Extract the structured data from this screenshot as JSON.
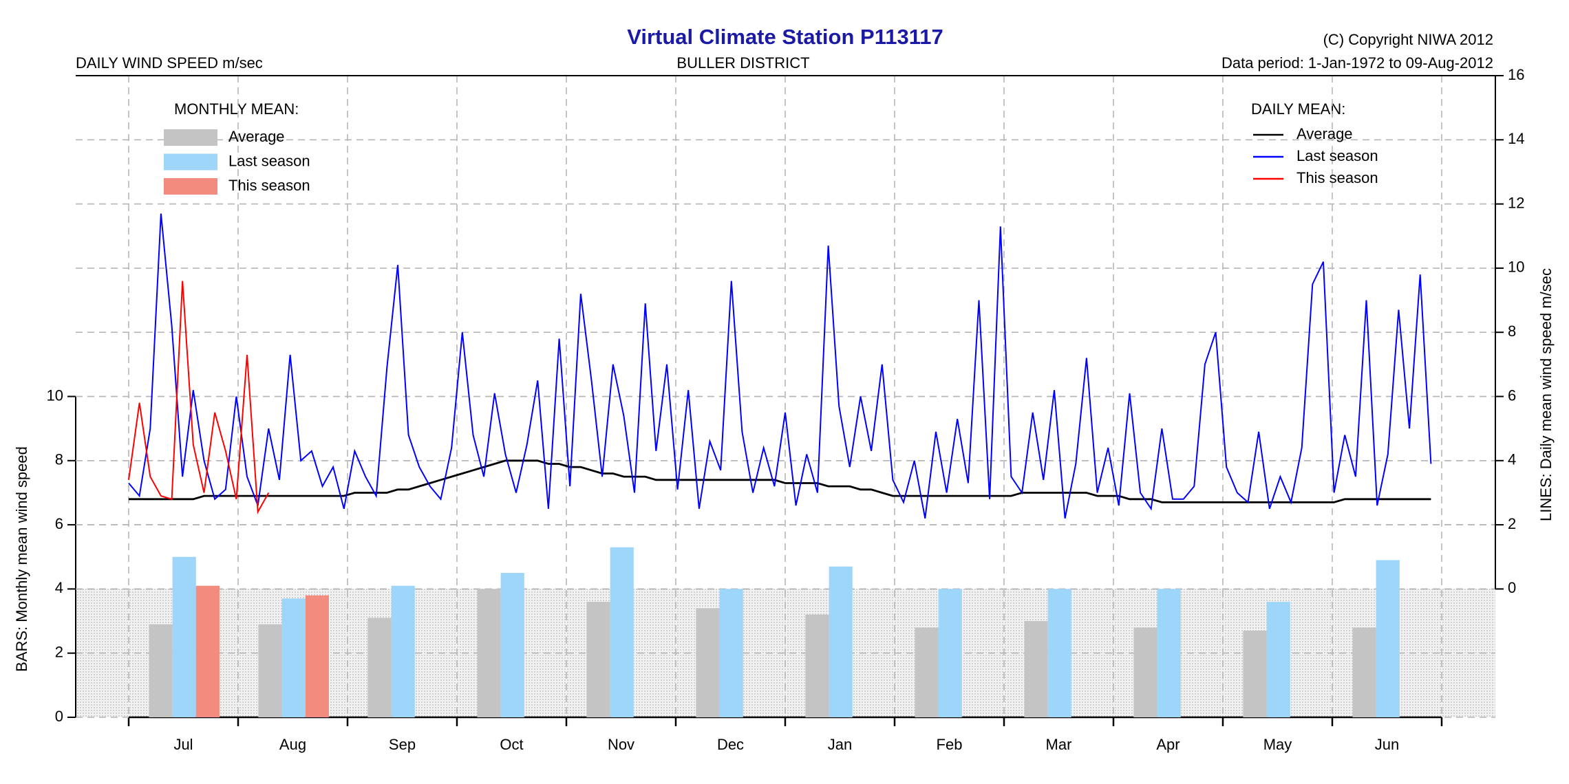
{
  "chart_data": [
    {
      "type": "bar",
      "title": "Virtual Climate Station P113117",
      "subtitle": "BULLER DISTRICT",
      "header_left": "DAILY WIND SPEED m/sec",
      "copyright": "(C) Copyright NIWA  2012",
      "data_period": "Data period:  1-Jan-1972  to  09-Aug-2012",
      "ylabel": "BARS: Monthly mean wind speed",
      "legend_title": "MONTHLY MEAN:",
      "categories": [
        "Jul",
        "Aug",
        "Sep",
        "Oct",
        "Nov",
        "Dec",
        "Jan",
        "Feb",
        "Mar",
        "Apr",
        "May",
        "Jun"
      ],
      "ylim": [
        0,
        20
      ],
      "yticks": [
        0,
        2,
        4,
        6,
        8,
        10
      ],
      "grid": true,
      "series": [
        {
          "name": "Average",
          "color": "#c4c4c4",
          "values": [
            2.9,
            2.9,
            3.1,
            4.0,
            3.6,
            3.4,
            3.2,
            2.8,
            3.0,
            2.8,
            2.7,
            2.8
          ]
        },
        {
          "name": "Last season",
          "color": "#9ed6fa",
          "values": [
            5.0,
            3.7,
            4.1,
            4.5,
            5.3,
            4.0,
            4.7,
            4.0,
            4.0,
            4.0,
            3.6,
            4.9
          ]
        },
        {
          "name": "This season",
          "color": "#f28c7f",
          "values": [
            4.1,
            3.8,
            null,
            null,
            null,
            null,
            null,
            null,
            null,
            null,
            null,
            null
          ]
        }
      ]
    },
    {
      "type": "line",
      "ylabel": "LINES: Daily mean wind speed m/sec",
      "legend_title": "DAILY MEAN:",
      "ylim": [
        -4,
        16
      ],
      "yticks": [
        0,
        2,
        4,
        6,
        8,
        10,
        12,
        14,
        16
      ],
      "grid": true,
      "series": [
        {
          "name": "Average",
          "color": "#000000",
          "values": [
            2.8,
            2.8,
            2.8,
            2.8,
            2.8,
            2.8,
            2.8,
            2.9,
            2.9,
            2.9,
            2.9,
            2.9,
            2.9,
            2.9,
            2.9,
            2.9,
            2.9,
            2.9,
            2.9,
            2.9,
            2.9,
            3.0,
            3.0,
            3.0,
            3.0,
            3.1,
            3.1,
            3.2,
            3.3,
            3.4,
            3.5,
            3.6,
            3.7,
            3.8,
            3.9,
            4.0,
            4.0,
            4.0,
            4.0,
            3.9,
            3.9,
            3.8,
            3.8,
            3.7,
            3.6,
            3.6,
            3.5,
            3.5,
            3.5,
            3.4,
            3.4,
            3.4,
            3.4,
            3.4,
            3.4,
            3.4,
            3.4,
            3.4,
            3.4,
            3.4,
            3.4,
            3.3,
            3.3,
            3.3,
            3.3,
            3.2,
            3.2,
            3.2,
            3.1,
            3.1,
            3.0,
            2.9,
            2.9,
            2.9,
            2.9,
            2.9,
            2.9,
            2.9,
            2.9,
            2.9,
            2.9,
            2.9,
            2.9,
            3.0,
            3.0,
            3.0,
            3.0,
            3.0,
            3.0,
            3.0,
            2.9,
            2.9,
            2.9,
            2.8,
            2.8,
            2.8,
            2.7,
            2.7,
            2.7,
            2.7,
            2.7,
            2.7,
            2.7,
            2.7,
            2.7,
            2.7,
            2.7,
            2.7,
            2.7,
            2.7,
            2.7,
            2.7,
            2.7,
            2.8,
            2.8,
            2.8,
            2.8,
            2.8,
            2.8,
            2.8,
            2.8,
            2.8
          ]
        },
        {
          "name": "Last season",
          "color": "#0000ff",
          "values": [
            3.3,
            2.9,
            5.0,
            11.7,
            8.2,
            3.5,
            6.2,
            4.0,
            2.8,
            3.1,
            6.0,
            3.5,
            2.6,
            5.0,
            3.4,
            7.3,
            4.0,
            4.3,
            3.2,
            3.8,
            2.5,
            4.3,
            3.5,
            2.9,
            6.9,
            10.1,
            4.8,
            3.8,
            3.2,
            2.8,
            4.4,
            8.0,
            4.8,
            3.5,
            6.1,
            4.2,
            3.0,
            4.5,
            6.5,
            2.5,
            7.8,
            3.2,
            9.2,
            6.5,
            3.5,
            7.0,
            5.4,
            3.0,
            8.9,
            4.3,
            7.0,
            3.1,
            6.2,
            2.5,
            4.6,
            3.7,
            9.6,
            4.9,
            3.0,
            4.4,
            3.2,
            5.5,
            2.6,
            4.2,
            3.0,
            10.7,
            5.7,
            3.8,
            6.0,
            4.3,
            7.0,
            3.4,
            2.7,
            4.0,
            2.2,
            4.9,
            3.0,
            5.3,
            3.3,
            9.0,
            2.8,
            11.3,
            3.5,
            3.0,
            5.5,
            3.4,
            6.2,
            2.2,
            3.9,
            7.2,
            3.0,
            4.4,
            2.6,
            6.1,
            3.0,
            2.5,
            5.0,
            2.8,
            2.8,
            3.2,
            7.0,
            8.0,
            3.8,
            3.0,
            2.7,
            4.9,
            2.5,
            3.5,
            2.7,
            4.4,
            9.5,
            10.2,
            3.0,
            4.8,
            3.5,
            9.0,
            2.6,
            4.2,
            8.7,
            5.0,
            9.8,
            3.9
          ]
        },
        {
          "name": "This season",
          "color": "#ff0000",
          "values": [
            3.4,
            5.8,
            3.5,
            2.9,
            2.8,
            9.6,
            4.5,
            3.0,
            5.5,
            4.3,
            2.8,
            7.3,
            2.4,
            3.0
          ]
        }
      ]
    }
  ]
}
